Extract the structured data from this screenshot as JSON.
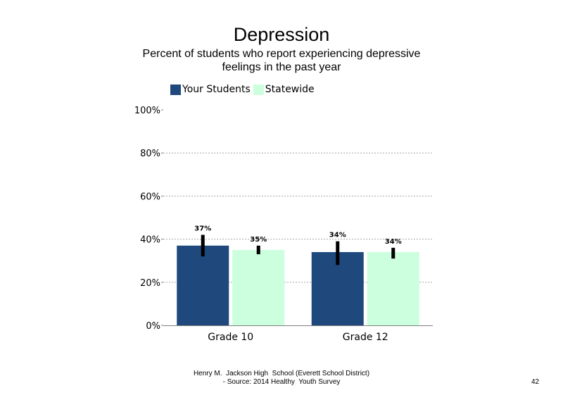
{
  "chart_data": {
    "type": "bar",
    "title": "Depression",
    "subtitle": "Percent of students who report experiencing depressive feelings in the past year",
    "categories": [
      "Grade 10",
      "Grade 12"
    ],
    "series": [
      {
        "name": "Your Students",
        "color": "#1f497d",
        "values": [
          37,
          34
        ],
        "labels": [
          "37%",
          "34%"
        ],
        "error_low": [
          32,
          28
        ],
        "error_high": [
          42,
          39
        ]
      },
      {
        "name": "Statewide",
        "color": "#ccffdd",
        "values": [
          35,
          34
        ],
        "labels": [
          "35%",
          "34%"
        ],
        "error_low": [
          33,
          31
        ],
        "error_high": [
          37,
          36
        ]
      }
    ],
    "ylim": [
      0,
      100
    ],
    "yticks": [
      0,
      20,
      40,
      60,
      80,
      100
    ],
    "ytick_labels": [
      "0%",
      "20%",
      "40%",
      "60%",
      "80%",
      "100%"
    ],
    "xlabel": "",
    "ylabel": "",
    "grid": true,
    "legend_position": "top-left"
  },
  "footer": {
    "line1": "Henry M.  Jackson High  School (Everett School District)",
    "line2": "- Source: 2014 Healthy  Youth Survey"
  },
  "page_number": "42"
}
